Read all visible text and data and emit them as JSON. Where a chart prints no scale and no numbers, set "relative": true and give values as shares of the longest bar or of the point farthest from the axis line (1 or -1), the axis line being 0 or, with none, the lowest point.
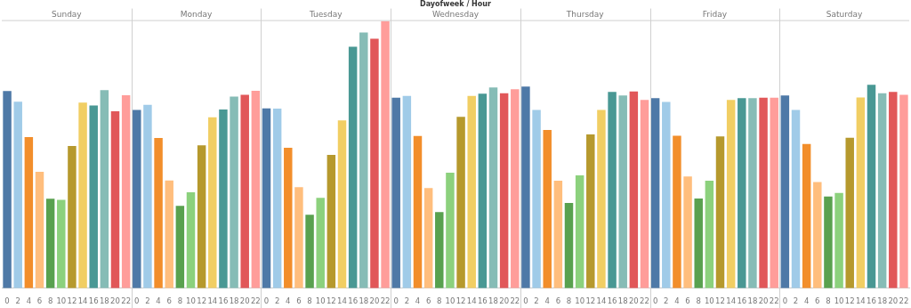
{
  "chart_data": {
    "type": "bar",
    "title": "Dayofweek / Hour",
    "relative": true,
    "annotations": [
      "Sunday",
      "Monday",
      "Tuesday",
      "Wednesday",
      "Thursday",
      "Friday",
      "Saturday"
    ],
    "categories": [
      "0",
      "2",
      "4",
      "6",
      "8",
      "10",
      "12",
      "14",
      "16",
      "18",
      "20",
      "22",
      "0",
      "2",
      "4",
      "6",
      "8",
      "10",
      "12",
      "14",
      "16",
      "18",
      "20",
      "22",
      "0",
      "2",
      "4",
      "6",
      "8",
      "10",
      "12",
      "14",
      "16",
      "18",
      "20",
      "22",
      "0",
      "2",
      "4",
      "6",
      "8",
      "10",
      "12",
      "14",
      "16",
      "18",
      "20",
      "22",
      "0",
      "2",
      "4",
      "6",
      "8",
      "10",
      "12",
      "14",
      "16",
      "18",
      "20",
      "22",
      "0",
      "2",
      "4",
      "6",
      "8",
      "10",
      "12",
      "14",
      "16",
      "18",
      "20",
      "22",
      "0",
      "2",
      "4",
      "6",
      "8",
      "10",
      "12",
      "14",
      "16",
      "18",
      "20",
      "22"
    ],
    "values": [
      0.738,
      0.698,
      0.566,
      0.436,
      0.335,
      0.331,
      0.532,
      0.695,
      0.684,
      0.741,
      0.662,
      0.722,
      0.667,
      0.686,
      0.562,
      0.403,
      0.308,
      0.359,
      0.535,
      0.64,
      0.669,
      0.717,
      0.724,
      0.739,
      0.673,
      0.672,
      0.526,
      0.378,
      0.275,
      0.338,
      0.499,
      0.628,
      0.904,
      0.957,
      0.934,
      1,
      0.713,
      0.72,
      0.57,
      0.375,
      0.285,
      0.432,
      0.641,
      0.72,
      0.728,
      0.751,
      0.73,
      0.745,
      0.755,
      0.667,
      0.592,
      0.402,
      0.319,
      0.422,
      0.576,
      0.667,
      0.735,
      0.721,
      0.736,
      0.705,
      0.711,
      0.697,
      0.571,
      0.418,
      0.336,
      0.402,
      0.568,
      0.705,
      0.711,
      0.711,
      0.713,
      0.713,
      0.721,
      0.667,
      0.54,
      0.397,
      0.343,
      0.357,
      0.563,
      0.714,
      0.761,
      0.73,
      0.735,
      0.724
    ],
    "colors": [
      "#4e79a7",
      "#a0cbe8",
      "#f28e2b",
      "#ffbe7d",
      "#59a14f",
      "#8cd17d",
      "#b6992d",
      "#f1ce63",
      "#499894",
      "#86bcb6",
      "#e15759",
      "#ff9d9a",
      "#4e79a7",
      "#a0cbe8",
      "#f28e2b",
      "#ffbe7d",
      "#59a14f",
      "#8cd17d",
      "#b6992d",
      "#f1ce63",
      "#499894",
      "#86bcb6",
      "#e15759",
      "#ff9d9a",
      "#4e79a7",
      "#a0cbe8",
      "#f28e2b",
      "#ffbe7d",
      "#59a14f",
      "#8cd17d",
      "#b6992d",
      "#f1ce63",
      "#499894",
      "#86bcb6",
      "#e15759",
      "#ff9d9a",
      "#4e79a7",
      "#a0cbe8",
      "#f28e2b",
      "#ffbe7d",
      "#59a14f",
      "#8cd17d",
      "#b6992d",
      "#f1ce63",
      "#499894",
      "#86bcb6",
      "#e15759",
      "#ff9d9a",
      "#4e79a7",
      "#a0cbe8",
      "#f28e2b",
      "#ffbe7d",
      "#59a14f",
      "#8cd17d",
      "#b6992d",
      "#f1ce63",
      "#499894",
      "#86bcb6",
      "#e15759",
      "#ff9d9a",
      "#4e79a7",
      "#a0cbe8",
      "#f28e2b",
      "#ffbe7d",
      "#59a14f",
      "#8cd17d",
      "#b6992d",
      "#f1ce63",
      "#499894",
      "#86bcb6",
      "#e15759",
      "#ff9d9a",
      "#4e79a7",
      "#a0cbe8",
      "#f28e2b",
      "#ffbe7d",
      "#59a14f",
      "#8cd17d",
      "#b6992d",
      "#f1ce63",
      "#499894",
      "#86bcb6",
      "#e15759",
      "#ff9d9a"
    ]
  }
}
